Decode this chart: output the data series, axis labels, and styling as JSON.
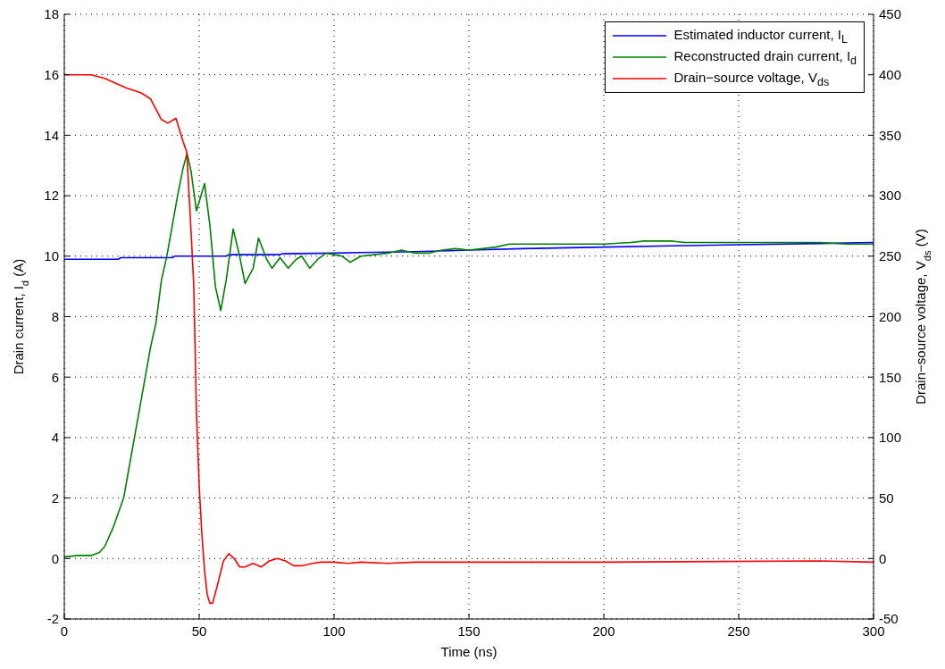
{
  "chart_data": {
    "type": "line",
    "xlabel": "Time (ns)",
    "ylabel": "Drain current, I$_{d}$ (A)",
    "y2label": "Drain−source voltage, V$_{ds}$ (V)",
    "xlim": [
      0,
      300
    ],
    "xticks": [
      0,
      50,
      100,
      150,
      200,
      250,
      300
    ],
    "ylim": [
      -2,
      18
    ],
    "yticks": [
      -2,
      0,
      2,
      4,
      6,
      8,
      10,
      12,
      14,
      16,
      18
    ],
    "y2lim": [
      -50,
      450
    ],
    "y2ticks": [
      -50,
      0,
      50,
      100,
      150,
      200,
      250,
      300,
      350,
      400,
      450
    ],
    "grid": true,
    "legend": "top right",
    "line_style": "solid",
    "marker": "none",
    "series": [
      {
        "name": "Estimated inductor current, I$_{L}$",
        "color": "#0000ff",
        "x": [
          0,
          20,
          21,
          40,
          41,
          60,
          61,
          80,
          81,
          100,
          110,
          130,
          150,
          170,
          200,
          230,
          250,
          280,
          300
        ],
        "values": [
          9.9,
          9.9,
          9.95,
          9.95,
          10.0,
          10.0,
          10.05,
          10.05,
          10.08,
          10.1,
          10.12,
          10.15,
          10.2,
          10.25,
          10.3,
          10.35,
          10.38,
          10.42,
          10.45
        ]
      },
      {
        "name": "Reconstructed drain current, I$_{d}$",
        "color": "#008000",
        "x": [
          0,
          5,
          10,
          13,
          15,
          18,
          20,
          22,
          24,
          26,
          28,
          30,
          32,
          34,
          35,
          36,
          38,
          40,
          42,
          44,
          45.5,
          47,
          49,
          52,
          54,
          56,
          58,
          60,
          62.6,
          65,
          67,
          70,
          72,
          75,
          77,
          80,
          83,
          86,
          88,
          91,
          94,
          97,
          100,
          103,
          106,
          110,
          115,
          120,
          125,
          130,
          135,
          140,
          145,
          150,
          155,
          160,
          165,
          170,
          180,
          190,
          200,
          210,
          215,
          225,
          230,
          240,
          250,
          260,
          270,
          280,
          290,
          300
        ],
        "values": [
          0.05,
          0.1,
          0.1,
          0.2,
          0.4,
          1.0,
          1.5,
          2.0,
          3.0,
          4.0,
          5.0,
          6.0,
          7.0,
          7.8,
          8.5,
          9.2,
          10.0,
          11.0,
          12.0,
          12.9,
          13.4,
          12.8,
          11.5,
          12.4,
          11.0,
          9.0,
          8.2,
          9.2,
          10.9,
          10.0,
          9.1,
          9.6,
          10.6,
          9.9,
          9.6,
          9.95,
          9.6,
          9.9,
          10.0,
          9.6,
          9.9,
          10.1,
          10.05,
          10.0,
          9.8,
          10.0,
          10.05,
          10.1,
          10.2,
          10.1,
          10.1,
          10.2,
          10.25,
          10.2,
          10.25,
          10.3,
          10.4,
          10.4,
          10.4,
          10.4,
          10.4,
          10.45,
          10.5,
          10.5,
          10.45,
          10.45,
          10.45,
          10.45,
          10.45,
          10.45,
          10.4,
          10.4
        ]
      },
      {
        "name": "Drain−source voltage, V$_{ds}$",
        "color": "#ff0000",
        "axis": "y2",
        "x": [
          0,
          10,
          15,
          23,
          28.5,
          32,
          36,
          38.4,
          41.4,
          44,
          45.4,
          47,
          48,
          49,
          50,
          51,
          52,
          53,
          54,
          55,
          57,
          59,
          61,
          63,
          65,
          67,
          70,
          73,
          76,
          79,
          82,
          85,
          88,
          92,
          95,
          100,
          105,
          110,
          120,
          130,
          150,
          200,
          280,
          300
        ],
        "values": [
          400,
          400,
          397,
          389,
          385,
          380,
          363,
          360,
          364,
          345,
          336,
          270,
          225,
          120,
          60,
          20,
          -10,
          -30,
          -37,
          -37,
          -20,
          -2,
          4,
          0,
          -7,
          -7,
          -4,
          -7,
          -2,
          0,
          -2,
          -6,
          -6,
          -4,
          -3,
          -3,
          -4,
          -3,
          -4,
          -3,
          -3,
          -3,
          -2,
          -3
        ]
      }
    ]
  }
}
